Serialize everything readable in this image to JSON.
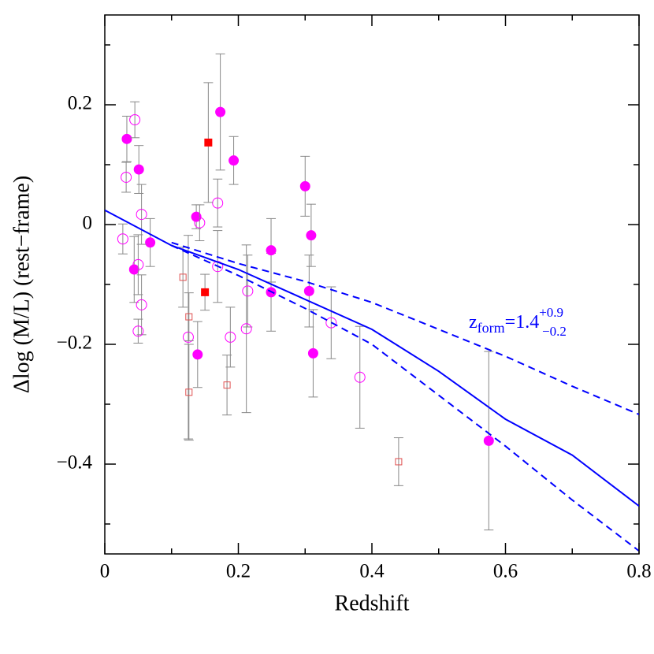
{
  "chart_data": {
    "type": "scatter",
    "xlabel": "Redshift",
    "ylabel": "Δlog (M/L) (rest−frame)",
    "xlim": [
      0,
      0.8
    ],
    "ylim": [
      -0.55,
      0.35
    ],
    "xticks": [
      0,
      0.2,
      0.4,
      0.6,
      0.8
    ],
    "yticks": [
      {
        "value": -0.4,
        "label": "−0.4"
      },
      {
        "value": -0.2,
        "label": "−0.2"
      },
      0,
      0.2
    ],
    "xminorticks": [
      0.1,
      0.3,
      0.5,
      0.7
    ],
    "yminorticks": [
      -0.5,
      -0.3,
      -0.1,
      0.1,
      0.3
    ],
    "annotation": {
      "parts": [
        "z",
        "form",
        "=1.4",
        "+0.9",
        "−0.2"
      ],
      "color": "#0000ff"
    },
    "series": [
      {
        "type": "scatter",
        "marker": "circle",
        "filled": true,
        "color": "#ff00ff",
        "x": [
          0.033,
          0.051,
          0.044,
          0.068,
          0.137,
          0.139,
          0.173,
          0.193,
          0.249,
          0.249,
          0.3,
          0.309,
          0.306,
          0.312,
          0.575
        ],
        "values": [
          0.143,
          0.092,
          -0.075,
          -0.03,
          0.013,
          -0.217,
          0.188,
          0.107,
          -0.043,
          -0.113,
          0.064,
          -0.018,
          -0.111,
          -0.215,
          -0.361
        ],
        "errors": [
          0.038,
          0.04,
          0.055,
          0.04,
          0.02,
          0.055,
          0.097,
          0.04,
          0.053,
          0.065,
          0.05,
          0.052,
          0.06,
          0.073,
          0.149
        ]
      },
      {
        "type": "scatter",
        "marker": "circle",
        "filled": false,
        "color": "#ff00ff",
        "x": [
          0.027,
          0.032,
          0.045,
          0.05,
          0.055,
          0.05,
          0.055,
          0.125,
          0.142,
          0.169,
          0.169,
          0.188,
          0.212,
          0.214,
          0.339,
          0.382
        ],
        "values": [
          -0.024,
          0.079,
          0.175,
          -0.067,
          -0.134,
          -0.178,
          0.017,
          -0.188,
          0.003,
          0.036,
          -0.07,
          -0.188,
          -0.174,
          -0.111,
          -0.164,
          -0.255
        ],
        "errors": [
          0.025,
          0.025,
          0.03,
          0.05,
          0.05,
          0.02,
          0.05,
          0.17,
          0.03,
          0.04,
          0.06,
          0.05,
          0.14,
          0.06,
          0.06,
          0.085
        ]
      },
      {
        "type": "scatter",
        "marker": "square",
        "filled": false,
        "color": "#e05050",
        "x": [
          0.117,
          0.126,
          0.126,
          0.183,
          0.44
        ],
        "values": [
          -0.088,
          -0.154,
          -0.28,
          -0.268,
          -0.396
        ],
        "errors": [
          0.05,
          0.04,
          0.08,
          0.05,
          0.04
        ]
      },
      {
        "type": "scatter",
        "marker": "square",
        "filled": true,
        "color": "#ff0000",
        "x": [
          0.155,
          0.15
        ],
        "values": [
          0.137,
          -0.113
        ],
        "errors": [
          0.1,
          0.03
        ]
      },
      {
        "type": "line",
        "dash": "solid",
        "color": "#0000ff",
        "x": [
          0,
          0.1,
          0.2,
          0.3,
          0.4,
          0.5,
          0.6,
          0.7,
          0.8
        ],
        "values": [
          0.024,
          -0.035,
          -0.075,
          -0.125,
          -0.175,
          -0.245,
          -0.325,
          -0.385,
          -0.47
        ]
      },
      {
        "type": "line",
        "dash": "dashed",
        "color": "#0000ff",
        "x": [
          0.1,
          0.2,
          0.3,
          0.4,
          0.5,
          0.6,
          0.7,
          0.8
        ],
        "values": [
          -0.03,
          -0.065,
          -0.095,
          -0.13,
          -0.175,
          -0.22,
          -0.27,
          -0.317
        ]
      },
      {
        "type": "line",
        "dash": "dashed",
        "color": "#0000ff",
        "x": [
          0.1,
          0.2,
          0.3,
          0.4,
          0.5,
          0.6,
          0.7,
          0.8
        ],
        "values": [
          -0.035,
          -0.085,
          -0.14,
          -0.2,
          -0.285,
          -0.37,
          -0.46,
          -0.545
        ]
      }
    ]
  }
}
